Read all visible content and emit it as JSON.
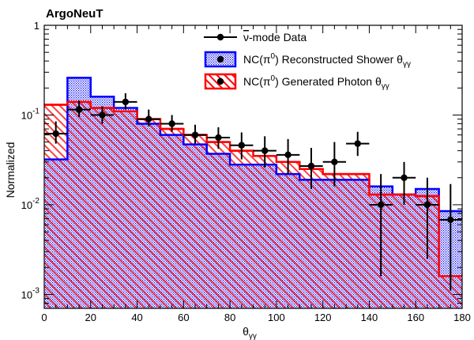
{
  "chart_data": {
    "type": "histogram",
    "experiment_label": "ArgoNeuT",
    "xlabel": "θ",
    "xlabel_sub": "γγ",
    "ylabel": "Normalized",
    "xlim": [
      0,
      180
    ],
    "ylim": [
      0.0007,
      1
    ],
    "y_scale": "log",
    "grid": false,
    "legend_position": "top-right",
    "x_ticks": [
      0,
      20,
      40,
      60,
      80,
      100,
      120,
      140,
      160,
      180
    ],
    "y_ticks": [
      {
        "value": 0.001,
        "base": "10",
        "exp": "-3"
      },
      {
        "value": 0.01,
        "base": "10",
        "exp": "-2"
      },
      {
        "value": 0.1,
        "base": "10",
        "exp": "-1"
      },
      {
        "value": 1,
        "base": "1",
        "exp": ""
      }
    ],
    "bin_edges": [
      0,
      10,
      20,
      30,
      40,
      50,
      60,
      70,
      80,
      90,
      100,
      110,
      120,
      130,
      140,
      150,
      160,
      170,
      180
    ],
    "series": [
      {
        "name_parts": {
          "pre": "NC(π",
          "sup": "0",
          "mid": ") Reconstructed Shower θ",
          "sub": "γγ"
        },
        "kind": "hist",
        "color": "#0000ff",
        "fill": "blue-dots",
        "values": [
          0.032,
          0.26,
          0.16,
          0.12,
          0.08,
          0.06,
          0.047,
          0.037,
          0.028,
          0.028,
          0.022,
          0.019,
          0.019,
          0.019,
          0.016,
          0.013,
          0.015,
          0.0085
        ]
      },
      {
        "name_parts": {
          "pre": "NC(π",
          "sup": "0",
          "mid": ") Generated Photon θ",
          "sub": "γγ"
        },
        "kind": "hist",
        "color": "#ff0000",
        "fill": "red-hatch",
        "values": [
          0.13,
          0.14,
          0.12,
          0.11,
          0.09,
          0.07,
          0.06,
          0.05,
          0.04,
          0.035,
          0.03,
          0.025,
          0.022,
          0.022,
          0.013,
          0.013,
          0.0125,
          0.0016
        ]
      },
      {
        "name_parts": {
          "pre": "ν",
          "sup": "",
          "mid": "-mode Data",
          "sub": ""
        },
        "kind": "points",
        "color": "#000000",
        "x": [
          5,
          15,
          25,
          35,
          45,
          55,
          65,
          75,
          85,
          95,
          105,
          115,
          125,
          135,
          145,
          155,
          165,
          175
        ],
        "values": [
          0.062,
          0.115,
          0.1,
          0.14,
          0.09,
          0.08,
          0.06,
          0.056,
          0.046,
          0.04,
          0.036,
          0.027,
          0.03,
          0.048,
          0.01,
          0.02,
          0.01,
          0.0068
        ],
        "err_hi": [
          0.085,
          0.145,
          0.125,
          0.175,
          0.115,
          0.1,
          0.078,
          0.073,
          0.064,
          0.058,
          0.054,
          0.043,
          0.05,
          0.065,
          0.022,
          0.03,
          0.02,
          0.017
        ],
        "err_lo": [
          0.048,
          0.095,
          0.08,
          0.115,
          0.075,
          0.065,
          0.048,
          0.042,
          0.032,
          0.026,
          0.022,
          0.015,
          0.016,
          0.035,
          0.0016,
          0.01,
          0.0025,
          0.0011
        ]
      }
    ]
  }
}
